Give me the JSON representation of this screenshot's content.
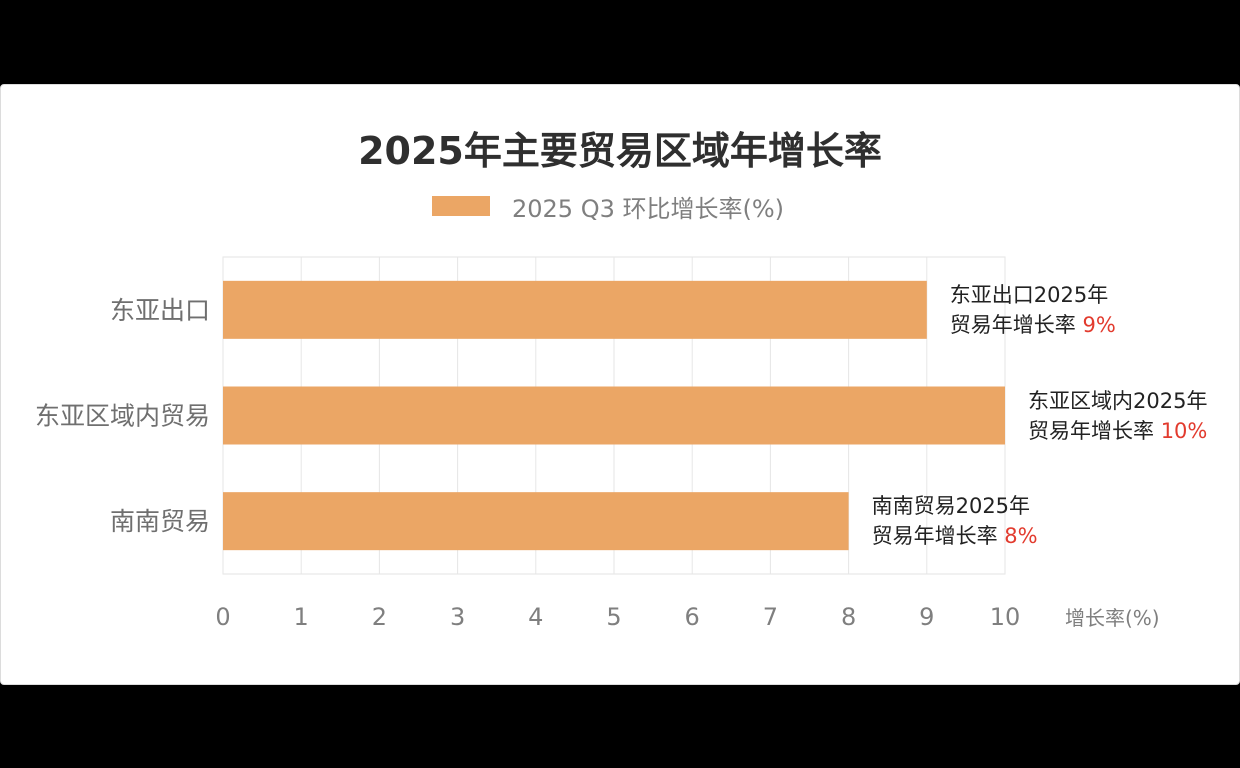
{
  "chart_data": {
    "type": "bar",
    "orientation": "horizontal",
    "title": "2025年主要贸易区域年增长率",
    "categories": [
      "东亚出口",
      "东亚区域内贸易",
      "南南贸易"
    ],
    "series": [
      {
        "name": "2025 Q3 环比增长率(%)",
        "values": [
          9,
          10,
          8
        ]
      }
    ],
    "xlabel": "增长率(%)",
    "ylabel": "",
    "xlim": [
      0,
      10
    ],
    "x_ticks": [
      "0",
      "1",
      "2",
      "3",
      "4",
      "5",
      "6",
      "7",
      "8",
      "9",
      "10"
    ],
    "grid": true,
    "legend_position": "top",
    "bar_color": "#eba665",
    "annotations": [
      {
        "line1": "东亚出口2025年",
        "line2": "贸易年增长率",
        "value": "9%"
      },
      {
        "line1": "东亚区域内2025年",
        "line2": "贸易年增长率",
        "value": "10%"
      },
      {
        "line1": "南南贸易2025年",
        "line2": "贸易年增长率",
        "value": "8%"
      }
    ],
    "annotation_value_color": "#e23b2e"
  }
}
